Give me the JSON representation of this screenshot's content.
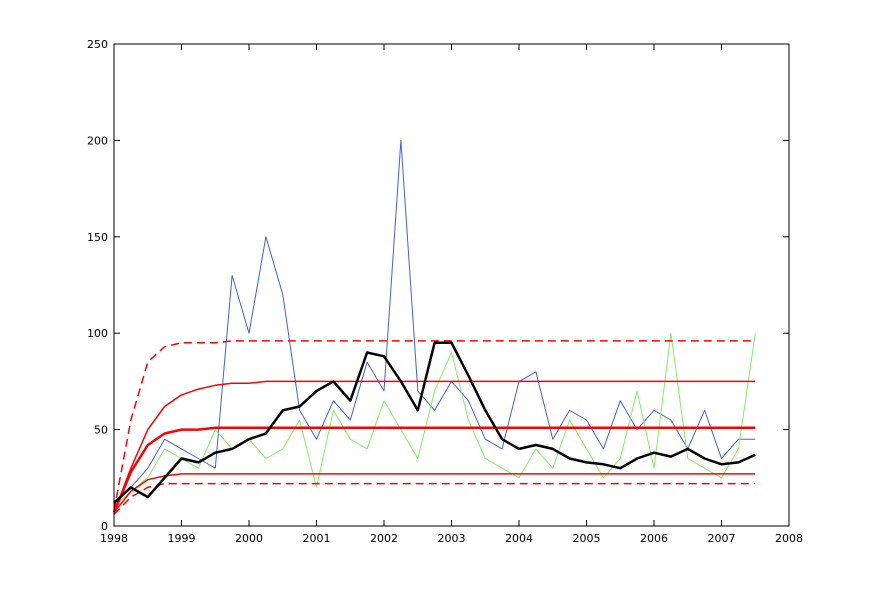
{
  "chart_data": {
    "type": "line",
    "x": [
      1998,
      1998.25,
      1998.5,
      1998.75,
      1999,
      1999.25,
      1999.5,
      1999.75,
      2000,
      2000.25,
      2000.5,
      2000.75,
      2001,
      2001.25,
      2001.5,
      2001.75,
      2002,
      2002.25,
      2002.5,
      2002.75,
      2003,
      2003.25,
      2003.5,
      2003.75,
      2004,
      2004.25,
      2004.5,
      2004.75,
      2005,
      2005.25,
      2005.5,
      2005.75,
      2006,
      2006.25,
      2006.5,
      2006.75,
      2007,
      2007.25,
      2007.5
    ],
    "xlim": [
      1998,
      2008
    ],
    "xticks": [
      1998,
      1999,
      2000,
      2001,
      2002,
      2003,
      2004,
      2005,
      2006,
      2007,
      2008
    ],
    "ylim": [
      0,
      250
    ],
    "yticks": [
      0,
      50,
      100,
      150,
      200,
      250
    ],
    "grid": false,
    "series": [
      {
        "color": "#4060e0",
        "width": 1,
        "style": "solid",
        "values": [
          12,
          20,
          30,
          45,
          40,
          35,
          30,
          130,
          100,
          150,
          120,
          60,
          45,
          65,
          55,
          85,
          70,
          200,
          70,
          60,
          75,
          65,
          45,
          40,
          75,
          80,
          45,
          60,
          55,
          40,
          65,
          50,
          60,
          55,
          40,
          60,
          35,
          45,
          45
        ]
      },
      {
        "color": "#80f060",
        "width": 1,
        "style": "solid",
        "values": [
          10,
          18,
          25,
          40,
          35,
          30,
          50,
          40,
          45,
          35,
          40,
          55,
          20,
          60,
          45,
          40,
          65,
          50,
          35,
          70,
          90,
          55,
          35,
          30,
          25,
          40,
          30,
          55,
          40,
          25,
          35,
          70,
          30,
          100,
          35,
          30,
          25,
          40,
          100
        ]
      },
      {
        "color": "#ff0000",
        "width": 1.5,
        "style": "dashed",
        "values": [
          8,
          55,
          85,
          93,
          95,
          95,
          95,
          96,
          96,
          96,
          96,
          96,
          96,
          96,
          96,
          96,
          96,
          96,
          96,
          96,
          96,
          96,
          96,
          96,
          96,
          96,
          96,
          96,
          96,
          96,
          96,
          96,
          96,
          96,
          96,
          96,
          96,
          96,
          96
        ]
      },
      {
        "color": "#ff0000",
        "width": 1.5,
        "style": "solid",
        "values": [
          7,
          30,
          50,
          62,
          68,
          71,
          73,
          74,
          74,
          75,
          75,
          75,
          75,
          75,
          75,
          75,
          75,
          75,
          75,
          75,
          75,
          75,
          75,
          75,
          75,
          75,
          75,
          75,
          75,
          75,
          75,
          75,
          75,
          75,
          75,
          75,
          75,
          75,
          75
        ]
      },
      {
        "color": "#ff0000",
        "width": 2.5,
        "style": "solid",
        "values": [
          7,
          28,
          42,
          48,
          50,
          50,
          51,
          51,
          51,
          51,
          51,
          51,
          51,
          51,
          51,
          51,
          51,
          51,
          51,
          51,
          51,
          51,
          51,
          51,
          51,
          51,
          51,
          51,
          51,
          51,
          51,
          51,
          51,
          51,
          51,
          51,
          51,
          51,
          51
        ]
      },
      {
        "color": "#ff0000",
        "width": 1.5,
        "style": "solid",
        "values": [
          7,
          18,
          24,
          26,
          27,
          27,
          27,
          27,
          27,
          27,
          27,
          27,
          27,
          27,
          27,
          27,
          27,
          27,
          27,
          27,
          27,
          27,
          27,
          27,
          27,
          27,
          27,
          27,
          27,
          27,
          27,
          27,
          27,
          27,
          27,
          27,
          27,
          27,
          27
        ]
      },
      {
        "color": "#ff0000",
        "width": 1.5,
        "style": "dashed",
        "values": [
          6,
          15,
          20,
          22,
          22,
          22,
          22,
          22,
          22,
          22,
          22,
          22,
          22,
          22,
          22,
          22,
          22,
          22,
          22,
          22,
          22,
          22,
          22,
          22,
          22,
          22,
          22,
          22,
          22,
          22,
          22,
          22,
          22,
          22,
          22,
          22,
          22,
          22,
          22
        ]
      },
      {
        "color": "#000000",
        "width": 2.5,
        "style": "solid",
        "values": [
          12,
          20,
          15,
          25,
          35,
          33,
          38,
          40,
          45,
          48,
          60,
          62,
          70,
          75,
          65,
          90,
          88,
          75,
          60,
          95,
          95,
          78,
          60,
          45,
          40,
          42,
          40,
          35,
          33,
          32,
          30,
          35,
          38,
          36,
          40,
          35,
          32,
          33,
          37
        ]
      }
    ]
  }
}
